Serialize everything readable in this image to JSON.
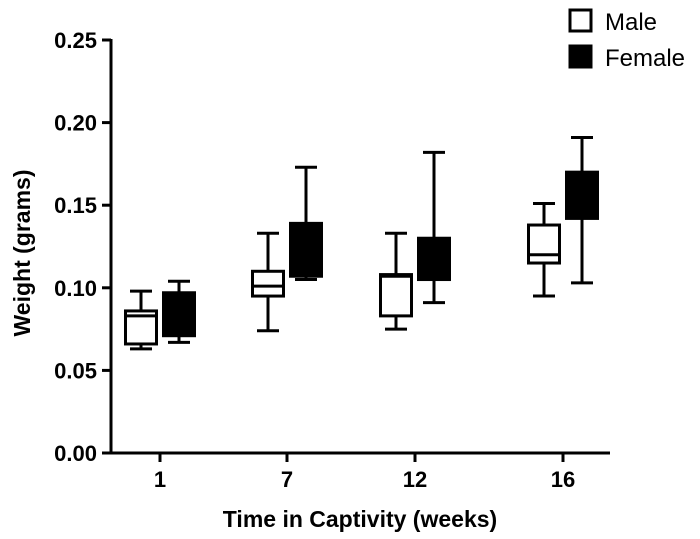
{
  "chart_data": {
    "type": "box",
    "title": "",
    "xlabel": "Time in Captivity (weeks)",
    "ylabel": "Weight (grams)",
    "ylim": [
      0.0,
      0.25
    ],
    "yticks": [
      "0.00",
      "0.05",
      "0.10",
      "0.15",
      "0.20",
      "0.25"
    ],
    "categories": [
      "1",
      "7",
      "12",
      "16"
    ],
    "legend": {
      "position": "top-right"
    },
    "series": [
      {
        "name": "Male",
        "fill": "#ffffff",
        "boxes": [
          {
            "min": 0.063,
            "q1": 0.066,
            "median": 0.083,
            "q3": 0.086,
            "max": 0.098
          },
          {
            "min": 0.074,
            "q1": 0.095,
            "median": 0.101,
            "q3": 0.11,
            "max": 0.133
          },
          {
            "min": 0.075,
            "q1": 0.083,
            "median": 0.107,
            "q3": 0.108,
            "max": 0.133
          },
          {
            "min": 0.095,
            "q1": 0.115,
            "median": 0.12,
            "q3": 0.138,
            "max": 0.151
          }
        ]
      },
      {
        "name": "Female",
        "fill": "#000000",
        "boxes": [
          {
            "min": 0.067,
            "q1": 0.071,
            "median": 0.082,
            "q3": 0.097,
            "max": 0.104
          },
          {
            "min": 0.105,
            "q1": 0.107,
            "median": 0.12,
            "q3": 0.139,
            "max": 0.173
          },
          {
            "min": 0.091,
            "q1": 0.105,
            "median": 0.118,
            "q3": 0.13,
            "max": 0.182
          },
          {
            "min": 0.103,
            "q1": 0.142,
            "median": 0.155,
            "q3": 0.17,
            "max": 0.191
          }
        ]
      }
    ]
  }
}
